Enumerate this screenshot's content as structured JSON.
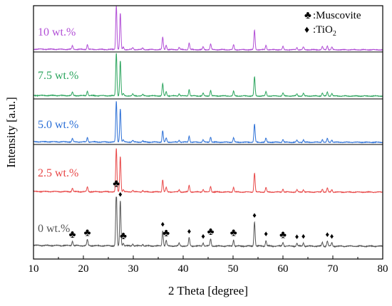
{
  "chart_data": {
    "type": "line",
    "title": "",
    "xlabel": "2 Theta [degree]",
    "ylabel": "Intensity [a.u.]",
    "xlim": [
      10,
      80
    ],
    "x_ticks": [
      10,
      20,
      30,
      40,
      50,
      60,
      70,
      80
    ],
    "y_ticks_shown": false,
    "stacked_offset": true,
    "legend": {
      "placement": "top-right",
      "entries": [
        {
          "symbol": "♣",
          "label": ":Muscovite"
        },
        {
          "symbol": "♦",
          "label": ":TiO",
          "sub": "2"
        }
      ]
    },
    "peaks": [
      {
        "x": 17.8,
        "h": 0.08
      },
      {
        "x": 20.8,
        "h": 0.11
      },
      {
        "x": 26.6,
        "h": 1.0
      },
      {
        "x": 27.4,
        "h": 0.82
      },
      {
        "x": 28.0,
        "h": 0.05
      },
      {
        "x": 29.9,
        "h": 0.04
      },
      {
        "x": 31.9,
        "h": 0.03
      },
      {
        "x": 35.9,
        "h": 0.28
      },
      {
        "x": 36.6,
        "h": 0.1
      },
      {
        "x": 39.2,
        "h": 0.05
      },
      {
        "x": 41.2,
        "h": 0.15
      },
      {
        "x": 44.0,
        "h": 0.06
      },
      {
        "x": 45.5,
        "h": 0.13
      },
      {
        "x": 50.1,
        "h": 0.11
      },
      {
        "x": 54.3,
        "h": 0.44
      },
      {
        "x": 56.6,
        "h": 0.1
      },
      {
        "x": 60.0,
        "h": 0.07
      },
      {
        "x": 62.8,
        "h": 0.05
      },
      {
        "x": 64.1,
        "h": 0.06
      },
      {
        "x": 67.9,
        "h": 0.07
      },
      {
        "x": 68.9,
        "h": 0.09
      },
      {
        "x": 69.8,
        "h": 0.06
      }
    ],
    "series": [
      {
        "name": "0 wt.%",
        "color": "#555555",
        "intensity_scale": 0.86
      },
      {
        "name": "2.5 wt.%",
        "color": "#e84747",
        "intensity_scale": 0.72
      },
      {
        "name": "5.0 wt.%",
        "color": "#2b6fd6",
        "intensity_scale": 0.72
      },
      {
        "name": "7.5 wt.%",
        "color": "#2ca55e",
        "intensity_scale": 0.72
      },
      {
        "name": "10 wt.%",
        "color": "#b24fd6",
        "intensity_scale": 0.72
      }
    ],
    "markers": [
      {
        "symbol": "♣",
        "x": 17.8,
        "label": "muscovite"
      },
      {
        "symbol": "♣",
        "x": 20.8,
        "label": "muscovite"
      },
      {
        "symbol": "♣",
        "x": 26.6,
        "label": "muscovite"
      },
      {
        "symbol": "♦",
        "x": 27.4,
        "label": "tio2"
      },
      {
        "symbol": "♣",
        "x": 28.0,
        "label": "muscovite"
      },
      {
        "symbol": "♦",
        "x": 35.9,
        "label": "tio2"
      },
      {
        "symbol": "♣",
        "x": 36.6,
        "label": "muscovite"
      },
      {
        "symbol": "♦",
        "x": 41.2,
        "label": "tio2"
      },
      {
        "symbol": "♦",
        "x": 44.0,
        "label": "tio2"
      },
      {
        "symbol": "♣",
        "x": 45.5,
        "label": "muscovite"
      },
      {
        "symbol": "♣",
        "x": 50.1,
        "label": "muscovite"
      },
      {
        "symbol": "♦",
        "x": 54.3,
        "label": "tio2"
      },
      {
        "symbol": "♦",
        "x": 56.6,
        "label": "tio2"
      },
      {
        "symbol": "♣",
        "x": 60.0,
        "label": "muscovite"
      },
      {
        "symbol": "♦",
        "x": 62.8,
        "label": "tio2"
      },
      {
        "symbol": "♦",
        "x": 64.1,
        "label": "tio2"
      },
      {
        "symbol": "♦",
        "x": 68.9,
        "label": "tio2"
      },
      {
        "symbol": "♦",
        "x": 69.8,
        "label": "tio2"
      }
    ]
  }
}
